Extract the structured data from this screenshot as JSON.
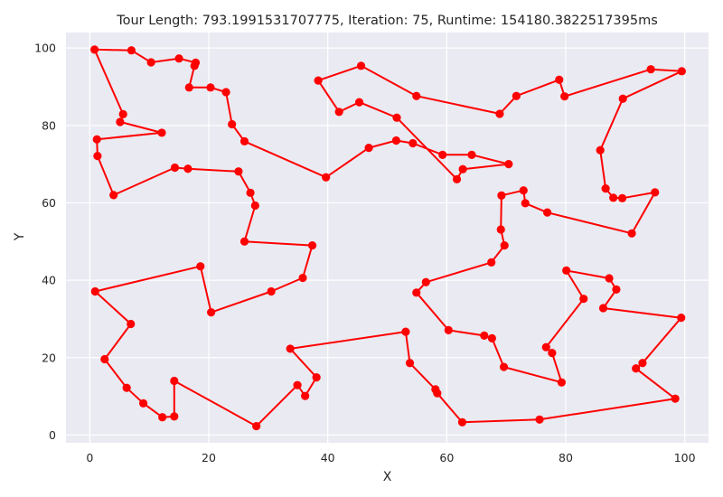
{
  "chart_data": {
    "type": "line",
    "title": "Tour Length: 793.1991531707775, Iteration: 75, Runtime: 154180.3822517395ms",
    "xlabel": "X",
    "ylabel": "Y",
    "xlim": [
      -4,
      104
    ],
    "ylim": [
      -2,
      104
    ],
    "xticks": [
      0,
      20,
      40,
      60,
      80,
      100
    ],
    "yticks": [
      0,
      20,
      40,
      60,
      80,
      100
    ],
    "grid": true,
    "background": "#EAEAF2",
    "series": [
      {
        "color": "#ff0000",
        "marker": "circle",
        "closed": true,
        "points": [
          [
            0.8,
            99.6
          ],
          [
            7,
            99.4
          ],
          [
            10.3,
            96.3
          ],
          [
            15,
            97.3
          ],
          [
            17.8,
            96.2
          ],
          [
            17.6,
            95.4
          ],
          [
            16.7,
            89.8
          ],
          [
            20.3,
            89.8
          ],
          [
            22.9,
            88.6
          ],
          [
            23.9,
            80.3
          ],
          [
            26,
            75.9
          ],
          [
            39.7,
            66.6
          ],
          [
            46.9,
            74.2
          ],
          [
            51.5,
            76.1
          ],
          [
            54.3,
            75.4
          ],
          [
            59.3,
            72.4
          ],
          [
            64.2,
            72.4
          ],
          [
            70.4,
            70
          ],
          [
            62.7,
            68.7
          ],
          [
            61.7,
            66.1
          ],
          [
            51.6,
            82
          ],
          [
            45.3,
            86
          ],
          [
            41.9,
            83.5
          ],
          [
            38.4,
            91.6
          ],
          [
            45.6,
            95.4
          ],
          [
            54.9,
            87.6
          ],
          [
            68.9,
            83
          ],
          [
            71.7,
            87.6
          ],
          [
            78.9,
            91.8
          ],
          [
            79.8,
            87.5
          ],
          [
            94.3,
            94.5
          ],
          [
            99.5,
            94
          ],
          [
            89.6,
            86.9
          ],
          [
            85.8,
            73.6
          ],
          [
            86.7,
            63.7
          ],
          [
            88,
            61.3
          ],
          [
            89.5,
            61.2
          ],
          [
            95,
            62.7
          ],
          [
            91.1,
            52.1
          ],
          [
            76.9,
            57.5
          ],
          [
            73.2,
            59.9
          ],
          [
            72.9,
            63.2
          ],
          [
            69.2,
            61.9
          ],
          [
            69.1,
            53.1
          ],
          [
            69.7,
            49
          ],
          [
            67.5,
            44.6
          ],
          [
            56.5,
            39.5
          ],
          [
            54.9,
            36.8
          ],
          [
            60.3,
            27.1
          ],
          [
            66.3,
            25.7
          ],
          [
            67.6,
            25
          ],
          [
            69.6,
            17.6
          ],
          [
            79.3,
            13.6
          ],
          [
            77.7,
            21.2
          ],
          [
            76.7,
            22.7
          ],
          [
            83,
            35.2
          ],
          [
            80.1,
            42.5
          ],
          [
            87.3,
            40.5
          ],
          [
            88.5,
            37.6
          ],
          [
            86.3,
            32.8
          ],
          [
            99.4,
            30.3
          ],
          [
            92.9,
            18.6
          ],
          [
            91.8,
            17.2
          ],
          [
            98.4,
            9.4
          ],
          [
            75.6,
            4
          ],
          [
            62.6,
            3.3
          ],
          [
            58.4,
            10.8
          ],
          [
            58.1,
            11.8
          ],
          [
            53.8,
            18.6
          ],
          [
            53.1,
            26.7
          ],
          [
            33.7,
            22.3
          ],
          [
            38.1,
            14.9
          ],
          [
            36.2,
            10.1
          ],
          [
            34.9,
            12.9
          ],
          [
            28,
            2.3
          ],
          [
            14.2,
            14
          ],
          [
            14.2,
            4.8
          ],
          [
            12.2,
            4.6
          ],
          [
            9,
            8.2
          ],
          [
            6.2,
            12.2
          ],
          [
            2.5,
            19.6
          ],
          [
            6.9,
            28.7
          ],
          [
            0.9,
            37.1
          ],
          [
            18.6,
            43.6
          ],
          [
            20.4,
            31.7
          ],
          [
            30.5,
            37.1
          ],
          [
            35.8,
            40.6
          ],
          [
            37.4,
            49
          ],
          [
            26,
            50
          ],
          [
            27.8,
            59.3
          ],
          [
            27,
            62.6
          ],
          [
            25,
            68.1
          ],
          [
            16.5,
            68.8
          ],
          [
            14.3,
            69.1
          ],
          [
            4,
            62
          ],
          [
            1.3,
            72.1
          ],
          [
            1.2,
            76.4
          ],
          [
            12.1,
            78.1
          ],
          [
            5.1,
            80.9
          ],
          [
            5.6,
            82.9
          ]
        ]
      }
    ]
  }
}
